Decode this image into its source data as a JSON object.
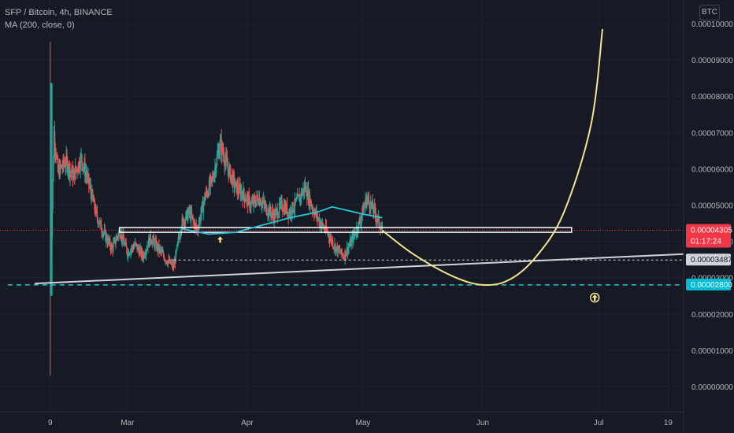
{
  "header": {
    "symbol_line": "SFP / Bitcoin, 4h, BINANCE",
    "indicator_line": "MA (200, close, 0)",
    "currency_button": "BTC"
  },
  "colors": {
    "background": "#161a25",
    "candle_up": "#26a69a",
    "candle_down": "#ef5350",
    "ma_line": "#26c6da",
    "support_line": "#26c6da",
    "trendline": "#d1d4dc",
    "forecast_curve": "#f4e38e",
    "zone_box": "#ffffff",
    "last_price_tag": "#f23645",
    "grid": "#1f2330"
  },
  "chart_data": {
    "type": "candlestick",
    "ylim": [
      0,
      0.0001
    ],
    "yticks": [
      {
        "value": 0.0001,
        "label": "0.00010000"
      },
      {
        "value": 9e-05,
        "label": "0.00009000"
      },
      {
        "value": 8e-05,
        "label": "0.00008000"
      },
      {
        "value": 7e-05,
        "label": "0.00007000"
      },
      {
        "value": 6e-05,
        "label": "0.00006000"
      },
      {
        "value": 5e-05,
        "label": "0.00005000"
      },
      {
        "value": 4e-05,
        "label": "0.00004000"
      },
      {
        "value": 3e-05,
        "label": "0.00003000"
      },
      {
        "value": 2e-05,
        "label": "0.00002000"
      },
      {
        "value": 1e-05,
        "label": "0.00001000"
      },
      {
        "value": 0.0,
        "label": "0.00000000"
      }
    ],
    "xlim": [
      "2021-01-27",
      "2021-07-23"
    ],
    "xticks": [
      {
        "date": "2021-02-09",
        "label": "9"
      },
      {
        "date": "2021-03-01",
        "label": "Mar"
      },
      {
        "date": "2021-04-01",
        "label": "Apr"
      },
      {
        "date": "2021-05-01",
        "label": "May"
      },
      {
        "date": "2021-06-01",
        "label": "Jun"
      },
      {
        "date": "2021-07-01",
        "label": "Jul"
      },
      {
        "date": "2021-07-19",
        "label": "19"
      }
    ],
    "price_path": [
      [
        "2021-02-09",
        2.85e-05
      ],
      [
        "2021-02-10",
        7e-05
      ],
      [
        "2021-02-11",
        5.9e-05
      ],
      [
        "2021-02-13",
        6.2e-05
      ],
      [
        "2021-02-15",
        5.8e-05
      ],
      [
        "2021-02-17",
        6.3e-05
      ],
      [
        "2021-02-19",
        5.6e-05
      ],
      [
        "2021-02-21",
        4.7e-05
      ],
      [
        "2021-02-23",
        4.2e-05
      ],
      [
        "2021-02-25",
        3.8e-05
      ],
      [
        "2021-02-27",
        4.3e-05
      ],
      [
        "2021-03-01",
        3.7e-05
      ],
      [
        "2021-03-03",
        3.9e-05
      ],
      [
        "2021-03-05",
        3.6e-05
      ],
      [
        "2021-03-07",
        4.1e-05
      ],
      [
        "2021-03-09",
        3.8e-05
      ],
      [
        "2021-03-11",
        3.5e-05
      ],
      [
        "2021-03-13",
        3.3e-05
      ],
      [
        "2021-03-15",
        4.5e-05
      ],
      [
        "2021-03-17",
        4.8e-05
      ],
      [
        "2021-03-19",
        4.3e-05
      ],
      [
        "2021-03-21",
        5.2e-05
      ],
      [
        "2021-03-23",
        5.7e-05
      ],
      [
        "2021-03-25",
        6.7e-05
      ],
      [
        "2021-03-27",
        6e-05
      ],
      [
        "2021-03-29",
        5.5e-05
      ],
      [
        "2021-03-31",
        5.3e-05
      ],
      [
        "2021-04-02",
        5e-05
      ],
      [
        "2021-04-04",
        5.2e-05
      ],
      [
        "2021-04-06",
        4.9e-05
      ],
      [
        "2021-04-08",
        4.7e-05
      ],
      [
        "2021-04-10",
        5e-05
      ],
      [
        "2021-04-12",
        4.8e-05
      ],
      [
        "2021-04-14",
        5.1e-05
      ],
      [
        "2021-04-16",
        5.5e-05
      ],
      [
        "2021-04-18",
        4.9e-05
      ],
      [
        "2021-04-20",
        4.5e-05
      ],
      [
        "2021-04-22",
        4.2e-05
      ],
      [
        "2021-04-24",
        3.8e-05
      ],
      [
        "2021-04-26",
        3.6e-05
      ],
      [
        "2021-04-28",
        4e-05
      ],
      [
        "2021-04-30",
        4.5e-05
      ],
      [
        "2021-05-02",
        5.2e-05
      ],
      [
        "2021-05-04",
        4.8e-05
      ],
      [
        "2021-05-06",
        4.3e-05
      ]
    ],
    "series": [
      {
        "name": "MA (200, close, 0)",
        "type": "line",
        "points": [
          [
            "2021-03-15",
            4.35e-05
          ],
          [
            "2021-03-22",
            4.2e-05
          ],
          [
            "2021-03-29",
            4.25e-05
          ],
          [
            "2021-04-05",
            4.45e-05
          ],
          [
            "2021-04-12",
            4.65e-05
          ],
          [
            "2021-04-19",
            4.8e-05
          ],
          [
            "2021-04-23",
            4.95e-05
          ],
          [
            "2021-04-27",
            4.85e-05
          ],
          [
            "2021-05-01",
            4.75e-05
          ],
          [
            "2021-05-06",
            4.65e-05
          ]
        ]
      }
    ],
    "annotations": {
      "resistance_zone": {
        "from": "2021-02-27",
        "to": "2021-06-24",
        "low": 4.25e-05,
        "high": 4.38e-05
      },
      "trendline": {
        "from": [
          "2021-02-05",
          2.84e-05
        ],
        "to": [
          "2021-07-23",
          3.65e-05
        ]
      },
      "support_line": {
        "from": "2021-01-29",
        "to": "2021-07-23",
        "value": 2.8e-05
      },
      "dotted_level": {
        "from": "2021-03-13",
        "to": "2021-07-23",
        "value": 3.487e-05
      },
      "last_price_line": {
        "value": 4.305e-05
      },
      "forecast_curve": [
        [
          "2021-05-06",
          4.3e-05
        ],
        [
          "2021-05-14",
          3.65e-05
        ],
        [
          "2021-05-24",
          3.05e-05
        ],
        [
          "2021-06-01",
          2.8e-05
        ],
        [
          "2021-06-08",
          2.95e-05
        ],
        [
          "2021-06-15",
          3.6e-05
        ],
        [
          "2021-06-22",
          4.8e-05
        ],
        [
          "2021-06-29",
          7.2e-05
        ],
        [
          "2021-07-02",
          9.85e-05
        ]
      ],
      "arrows": [
        {
          "date": "2021-03-25",
          "value": 4.05e-05
        },
        {
          "date": "2021-06-30",
          "value": 2.45e-05
        }
      ]
    },
    "price_tags": [
      {
        "name": "last-price-tag",
        "value": 4.305e-05,
        "label": "0.00004305",
        "sublabel": "01:17:24",
        "bg": "#f23645",
        "fg": "#ffffff"
      },
      {
        "name": "dotted-level-tag",
        "value": 3.487e-05,
        "label": "0.00003487",
        "bg": "#d1d4dc",
        "fg": "#131722"
      },
      {
        "name": "support-level-tag",
        "value": 2.8e-05,
        "label": "0.00002800",
        "bg": "#00bcd4",
        "fg": "#ffffff"
      }
    ]
  }
}
